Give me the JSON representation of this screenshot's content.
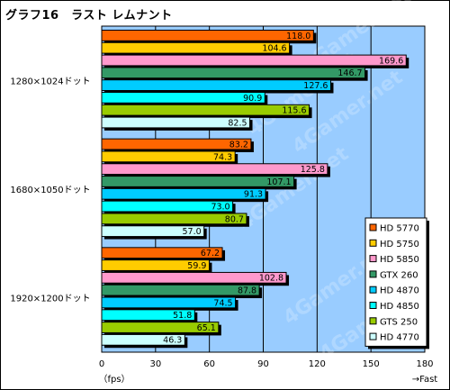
{
  "title": "グラフ16　ラスト レムナント",
  "watermark": "4Gamer.net",
  "chart_data": {
    "type": "bar",
    "orientation": "horizontal",
    "categories": [
      "1280×1024ドット",
      "1680×1050ドット",
      "1920×1200ドット"
    ],
    "series": [
      {
        "name": "HD 5770",
        "color": "#ff6600",
        "values": [
          118.0,
          83.2,
          67.2
        ]
      },
      {
        "name": "HD 5750",
        "color": "#ffcc00",
        "values": [
          104.6,
          74.3,
          59.9
        ]
      },
      {
        "name": "HD 5850",
        "color": "#ff99cc",
        "values": [
          169.6,
          125.8,
          102.8
        ]
      },
      {
        "name": "GTX 260",
        "color": "#339966",
        "values": [
          146.7,
          107.1,
          87.8
        ]
      },
      {
        "name": "HD 4870",
        "color": "#00ccff",
        "values": [
          127.6,
          91.3,
          74.5
        ]
      },
      {
        "name": "HD 4850",
        "color": "#00ffff",
        "values": [
          90.9,
          73.0,
          51.8
        ]
      },
      {
        "name": "GTS 250",
        "color": "#99cc00",
        "values": [
          115.6,
          80.7,
          65.1
        ]
      },
      {
        "name": "HD 4770",
        "color": "#ccffff",
        "values": [
          82.5,
          57.0,
          46.3
        ]
      }
    ],
    "x_ticks": [
      "0",
      "30",
      "60",
      "90",
      "120",
      "150",
      "180"
    ],
    "xlim": [
      0,
      180
    ],
    "x_unit": "（fps）",
    "x_direction_label": "→Fast",
    "plot_background": "#99ccff",
    "grid": true,
    "legend_position": "right-bottom"
  }
}
